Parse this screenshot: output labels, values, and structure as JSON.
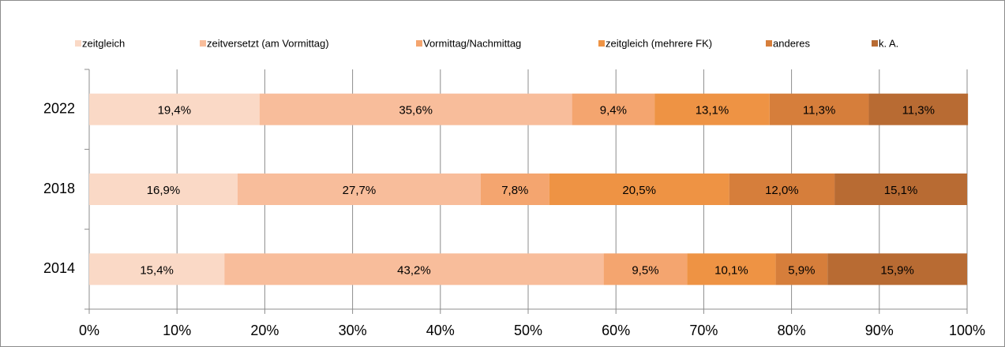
{
  "chart_data": {
    "type": "stacked_bar_horizontal",
    "categories": [
      "2022",
      "2018",
      "2014"
    ],
    "series": [
      {
        "name": "zeitgleich",
        "color": "#fad9c6",
        "values": [
          19.4,
          16.9,
          15.4
        ],
        "value_labels": [
          "19,4%",
          "16,9%",
          "15,4%"
        ]
      },
      {
        "name": "zeitversetzt (am Vormittag)",
        "color": "#f8bd9b",
        "values": [
          35.6,
          27.7,
          43.2
        ],
        "value_labels": [
          "35,6%",
          "27,7%",
          "43,2%"
        ]
      },
      {
        "name": "Vormittag/Nachmittag",
        "color": "#f4a56f",
        "values": [
          9.4,
          7.8,
          9.5
        ],
        "value_labels": [
          "9,4%",
          "7,8%",
          "9,5%"
        ]
      },
      {
        "name": "zeitgleich (mehrere FK)",
        "color": "#ee9344",
        "values": [
          13.1,
          20.5,
          10.1
        ],
        "value_labels": [
          "13,1%",
          "20,5%",
          "10,1%"
        ]
      },
      {
        "name": "anderes",
        "color": "#d67e3b",
        "values": [
          11.3,
          12,
          5.9
        ],
        "value_labels": [
          "11,3%",
          "12,0%",
          "5,9%"
        ]
      },
      {
        "name": "k. A.",
        "color": "#b86b33",
        "values": [
          11.3,
          15.1,
          15.9
        ],
        "value_labels": [
          "11,3%",
          "15,1%",
          "15,9%"
        ]
      }
    ],
    "xlim": [
      0,
      100
    ],
    "xticks": [
      {
        "value": 0,
        "label": "0%"
      },
      {
        "value": 10,
        "label": "10%"
      },
      {
        "value": 20,
        "label": "20%"
      },
      {
        "value": 30,
        "label": "30%"
      },
      {
        "value": 40,
        "label": "40%"
      },
      {
        "value": 50,
        "label": "50%"
      },
      {
        "value": 60,
        "label": "60%"
      },
      {
        "value": 70,
        "label": "70%"
      },
      {
        "value": 80,
        "label": "80%"
      },
      {
        "value": 90,
        "label": "90%"
      },
      {
        "value": 100,
        "label": "100%"
      }
    ],
    "grid": true,
    "legend": "top"
  }
}
